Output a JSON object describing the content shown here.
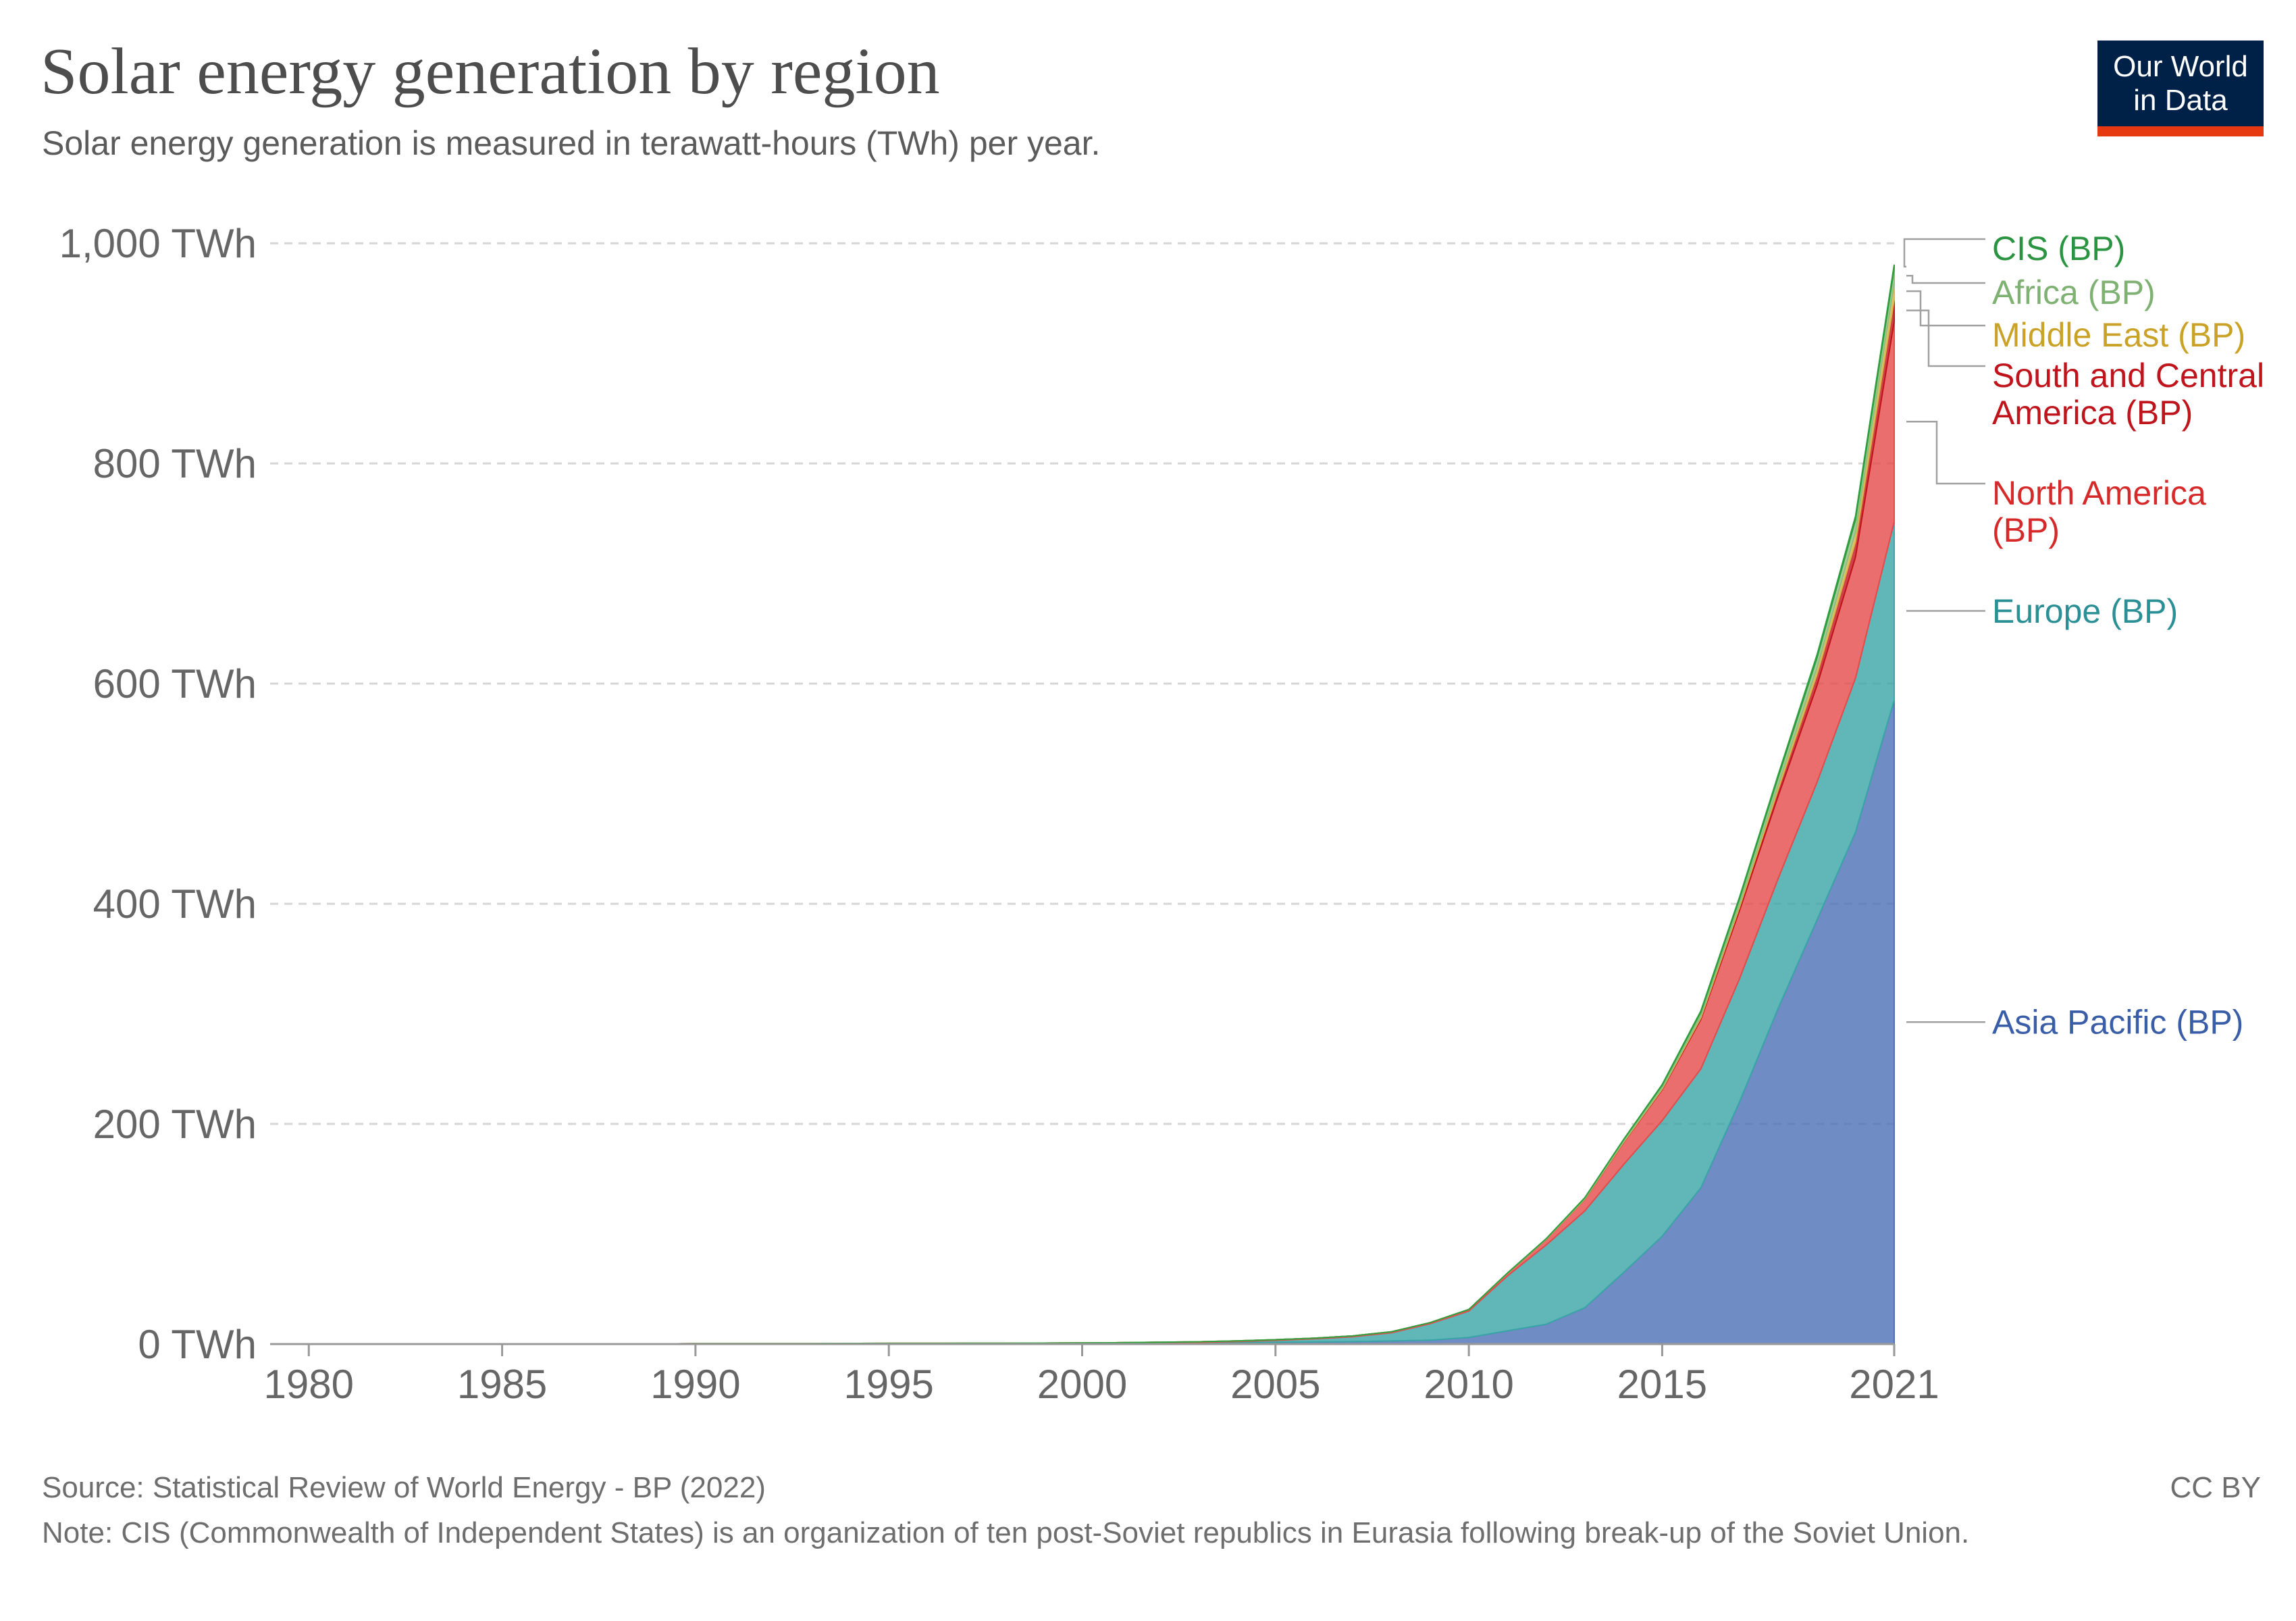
{
  "title": "Solar energy generation by region",
  "subtitle": "Solar energy generation is measured in terawatt-hours (TWh) per year.",
  "logo": {
    "line1": "Our World",
    "line2": "in Data"
  },
  "footer": {
    "source": "Source: Statistical Review of World Energy - BP (2022)",
    "license": "CC BY",
    "note": "Note: CIS (Commonwealth of Independent States) is an organization of ten post-Soviet republics in Eurasia following break-up of the Soviet Union."
  },
  "chart_data": {
    "type": "area",
    "stacked": true,
    "x": [
      1980,
      1981,
      1982,
      1983,
      1984,
      1985,
      1986,
      1987,
      1988,
      1989,
      1990,
      1991,
      1992,
      1993,
      1994,
      1995,
      1996,
      1997,
      1998,
      1999,
      2000,
      2001,
      2002,
      2003,
      2004,
      2005,
      2006,
      2007,
      2008,
      2009,
      2010,
      2011,
      2012,
      2013,
      2014,
      2015,
      2016,
      2017,
      2018,
      2019,
      2020,
      2021
    ],
    "xlim": [
      1979,
      2021
    ],
    "x_ticks": [
      {
        "value": 1980,
        "label": "1980"
      },
      {
        "value": 1985,
        "label": "1985"
      },
      {
        "value": 1990,
        "label": "1990"
      },
      {
        "value": 1995,
        "label": "1995"
      },
      {
        "value": 2000,
        "label": "2000"
      },
      {
        "value": 2005,
        "label": "2005"
      },
      {
        "value": 2010,
        "label": "2010"
      },
      {
        "value": 2015,
        "label": "2015"
      },
      {
        "value": 2021,
        "label": "2021"
      }
    ],
    "ylim": [
      0,
      1040
    ],
    "y_ticks": [
      {
        "value": 0,
        "label": "0 TWh"
      },
      {
        "value": 200,
        "label": "200 TWh"
      },
      {
        "value": 400,
        "label": "400 TWh"
      },
      {
        "value": 600,
        "label": "600 TWh"
      },
      {
        "value": 800,
        "label": "800 TWh"
      },
      {
        "value": 1000,
        "label": "1,000 TWh"
      }
    ],
    "grid": true,
    "legend": "right, labels at series ends",
    "series": [
      {
        "name": "Asia Pacific (BP)",
        "color": "#4c6fb6",
        "label_color": "#3a5da8",
        "values": [
          0,
          0,
          0,
          0,
          0,
          0,
          0,
          0,
          0,
          0,
          0.1,
          0.1,
          0.1,
          0.1,
          0.2,
          0.2,
          0.2,
          0.3,
          0.3,
          0.4,
          0.5,
          0.6,
          0.8,
          1.0,
          1.3,
          1.6,
          1.9,
          2.2,
          2.8,
          3.5,
          6,
          12,
          18,
          33,
          65,
          98,
          142,
          220,
          305,
          385,
          465,
          585
        ]
      },
      {
        "name": "Europe (BP)",
        "color": "#3aa5a6",
        "label_color": "#2b8f96",
        "values": [
          0,
          0,
          0,
          0,
          0,
          0,
          0,
          0,
          0,
          0,
          0,
          0,
          0,
          0,
          0,
          0,
          0,
          0,
          0,
          0,
          0.1,
          0.2,
          0.3,
          0.5,
          1.0,
          1.8,
          2.8,
          4.5,
          7.5,
          15,
          24,
          50,
          72,
          88,
          98,
          105,
          108,
          112,
          118,
          125,
          140,
          162
        ]
      },
      {
        "name": "North America (BP)",
        "color": "#e64a4a",
        "label_color": "#d62a2a",
        "values": [
          0.1,
          0.1,
          0.1,
          0.1,
          0.1,
          0.1,
          0.1,
          0.1,
          0.1,
          0.1,
          0.3,
          0.4,
          0.4,
          0.4,
          0.4,
          0.5,
          0.5,
          0.5,
          0.5,
          0.5,
          0.5,
          0.5,
          0.6,
          0.6,
          0.6,
          0.6,
          0.7,
          0.7,
          0.9,
          1.0,
          1.4,
          2.3,
          5.0,
          10.5,
          20,
          28,
          45,
          62,
          75,
          88,
          110,
          182
        ]
      },
      {
        "name": "South and Central America (BP)",
        "color": "#c0141c",
        "label_color": "#c0141c",
        "values": [
          0,
          0,
          0,
          0,
          0,
          0,
          0,
          0,
          0,
          0,
          0,
          0,
          0,
          0,
          0,
          0,
          0,
          0,
          0,
          0,
          0,
          0,
          0,
          0,
          0,
          0,
          0,
          0,
          0,
          0,
          0,
          0,
          0.1,
          0.2,
          0.4,
          0.7,
          1.5,
          3.0,
          6,
          10,
          14,
          20
        ]
      },
      {
        "name": "Middle East (BP)",
        "color": "#d8b64a",
        "label_color": "#c9a227",
        "values": [
          0,
          0,
          0,
          0,
          0,
          0,
          0,
          0,
          0,
          0,
          0,
          0,
          0,
          0,
          0,
          0,
          0,
          0,
          0,
          0,
          0,
          0,
          0,
          0,
          0,
          0,
          0,
          0,
          0,
          0,
          0,
          0.1,
          0.2,
          0.4,
          0.7,
          1.0,
          1.5,
          2.5,
          4,
          6,
          9,
          15
        ]
      },
      {
        "name": "Africa (BP)",
        "color": "#8fbf7f",
        "label_color": "#7fb173",
        "values": [
          0,
          0,
          0,
          0,
          0,
          0,
          0,
          0,
          0,
          0,
          0,
          0,
          0,
          0,
          0,
          0,
          0,
          0,
          0,
          0,
          0,
          0,
          0,
          0,
          0,
          0,
          0,
          0,
          0,
          0,
          0.1,
          0.2,
          0.4,
          0.8,
          1.5,
          2.5,
          3.5,
          5,
          7,
          9,
          11,
          13
        ]
      },
      {
        "name": "CIS (BP)",
        "color": "#2f9e3f",
        "label_color": "#2a9440",
        "values": [
          0,
          0,
          0,
          0,
          0,
          0,
          0,
          0,
          0,
          0,
          0,
          0,
          0,
          0,
          0,
          0,
          0,
          0,
          0,
          0,
          0,
          0,
          0,
          0,
          0,
          0,
          0,
          0,
          0,
          0,
          0,
          0,
          0,
          0.1,
          0.2,
          0.6,
          1.2,
          1.6,
          2.2,
          2.8,
          3.2,
          3.6
        ]
      }
    ]
  }
}
